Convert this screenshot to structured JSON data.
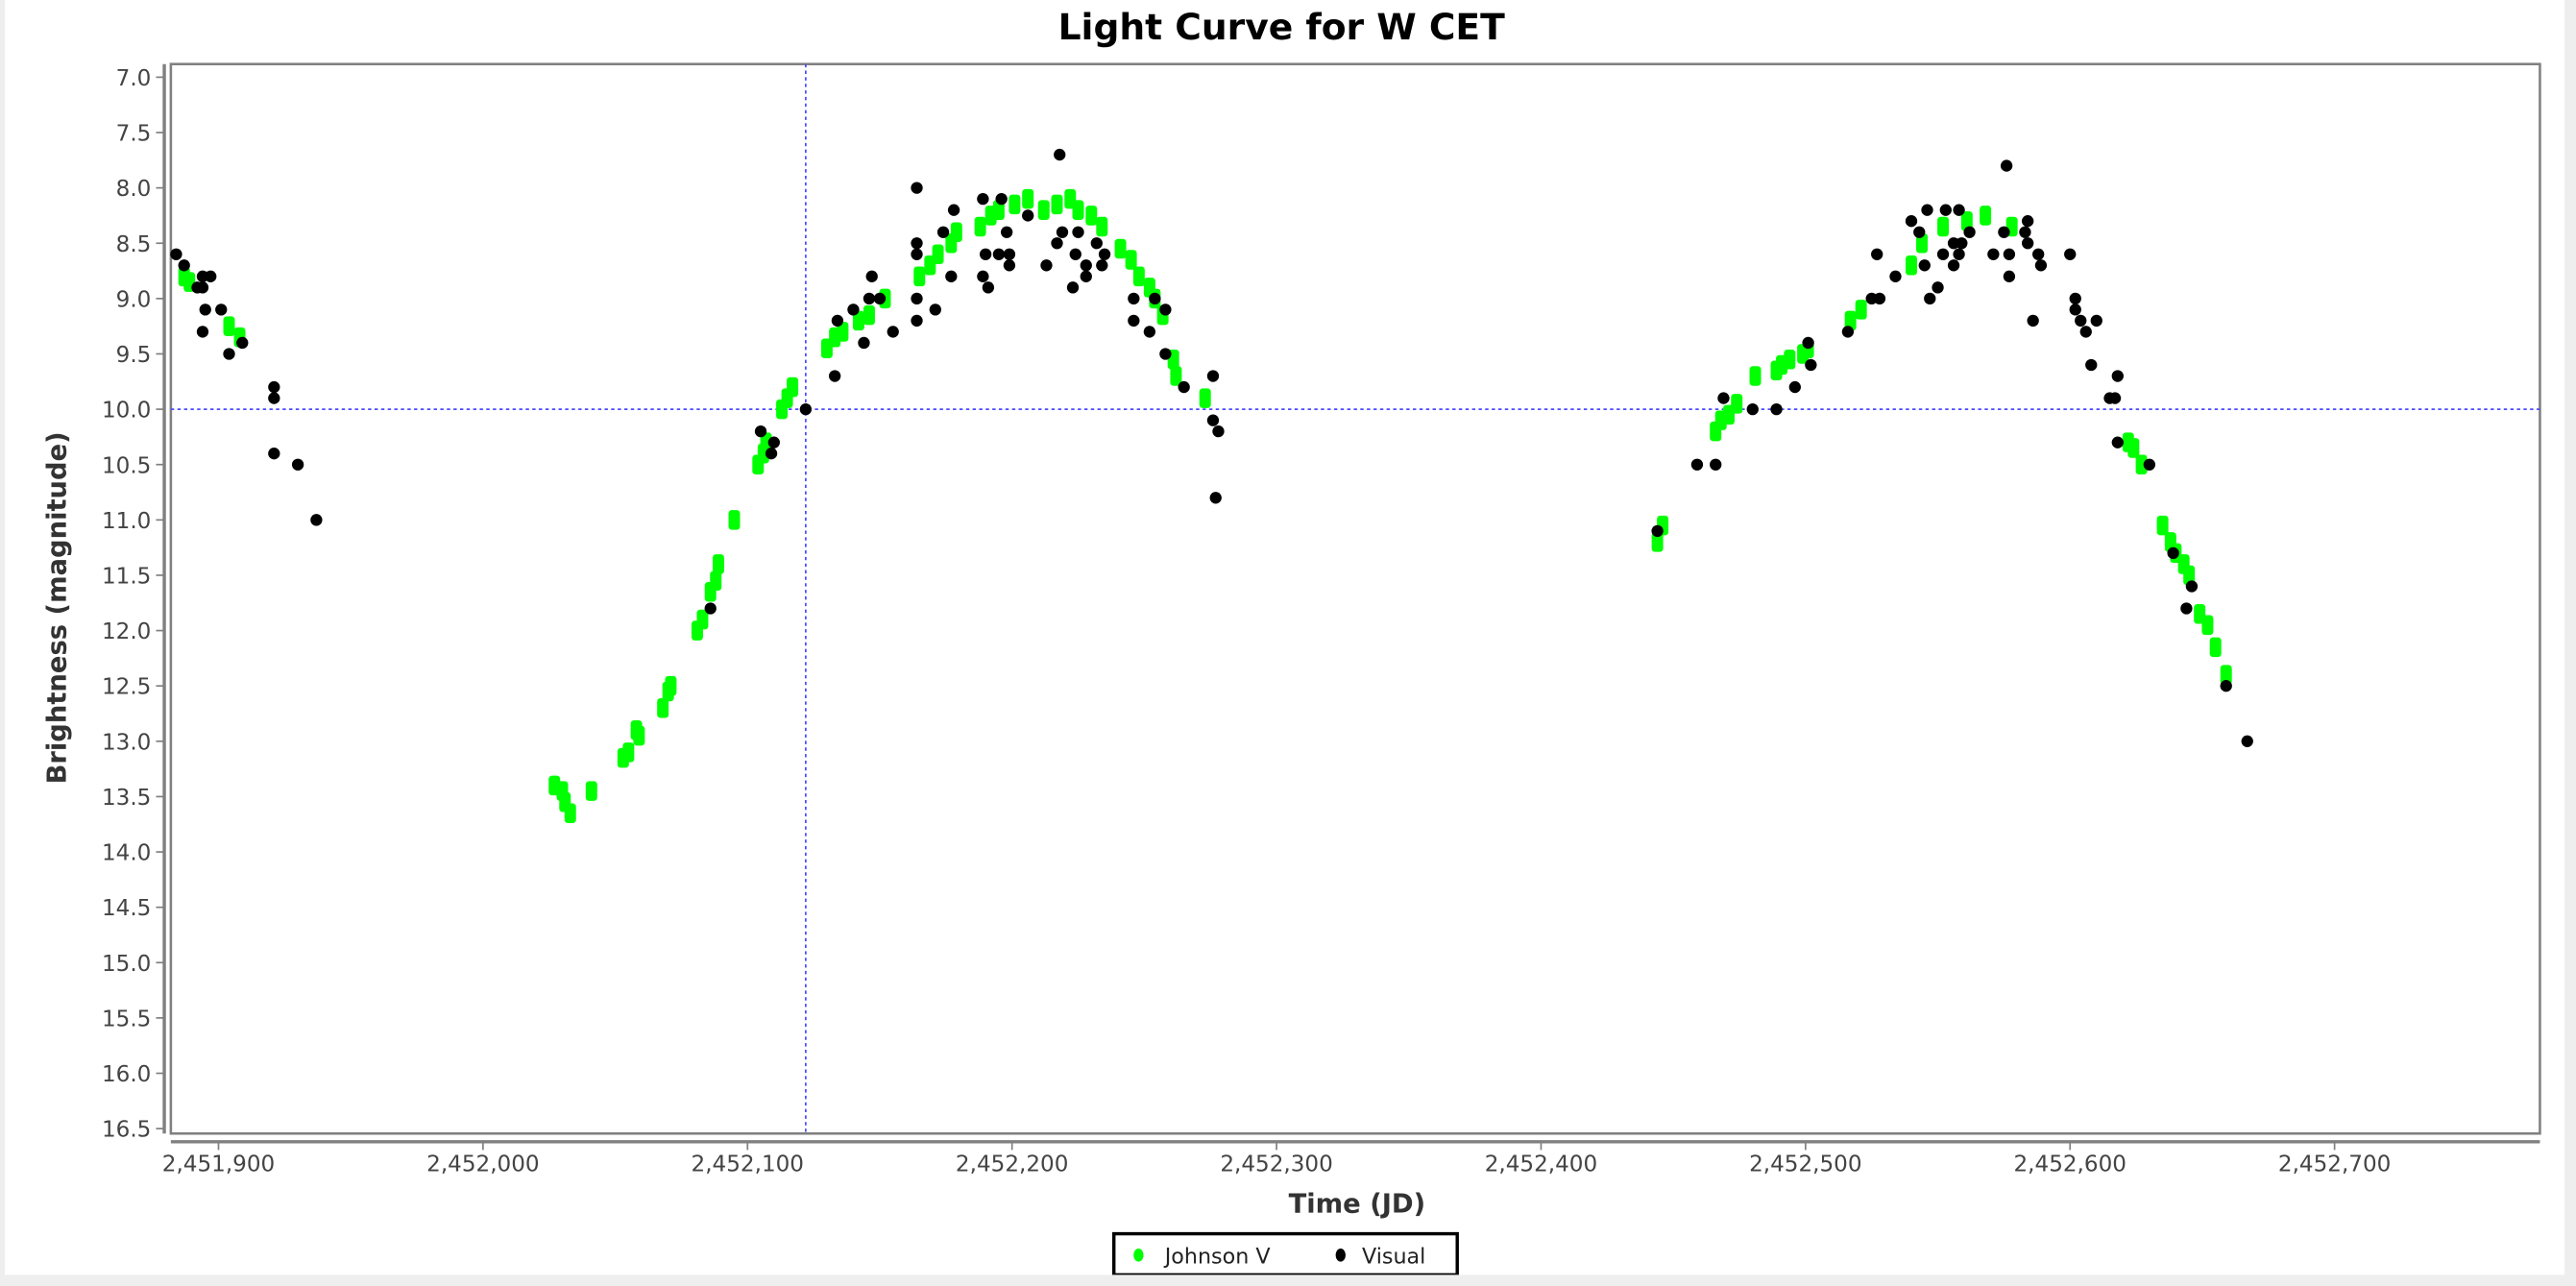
{
  "chart_data": {
    "type": "scatter",
    "title": "Light Curve for W CET",
    "xlabel": "Time (JD)",
    "ylabel": "Brightness (magnitude)",
    "xlim": [
      2451884,
      2452780
    ],
    "ylim": [
      16.55,
      6.9
    ],
    "y_inverted": true,
    "xticks": [
      2451900,
      2452000,
      2452100,
      2452200,
      2452300,
      2452400,
      2452500,
      2452600,
      2452700
    ],
    "xtick_labels": [
      "2,451,900",
      "2,452,000",
      "2,452,100",
      "2,452,200",
      "2,452,300",
      "2,452,400",
      "2,452,500",
      "2,452,600",
      "2,452,700"
    ],
    "yticks": [
      7.0,
      7.5,
      8.0,
      8.5,
      9.0,
      9.5,
      10.0,
      10.5,
      11.0,
      11.5,
      12.0,
      12.5,
      13.0,
      13.5,
      14.0,
      14.5,
      15.0,
      15.5,
      16.0,
      16.5
    ],
    "ytick_labels": [
      "7.0",
      "7.5",
      "8.0",
      "8.5",
      "9.0",
      "9.5",
      "10.0",
      "10.5",
      "11.0",
      "11.5",
      "12.0",
      "12.5",
      "13.0",
      "13.5",
      "14.0",
      "14.5",
      "15.0",
      "15.5",
      "16.0",
      "16.5"
    ],
    "crosshair": {
      "x": 2452122,
      "y": 10.0
    },
    "legend_position": "bottom-center",
    "series": [
      {
        "name": "Johnson V",
        "color": "#00ff00",
        "marker": "error-bar-box",
        "points": [
          [
            2451887,
            8.8
          ],
          [
            2451889,
            8.85
          ],
          [
            2451904,
            9.25
          ],
          [
            2451908,
            9.35
          ],
          [
            2452027,
            13.4
          ],
          [
            2452030,
            13.45
          ],
          [
            2452031,
            13.55
          ],
          [
            2452033,
            13.65
          ],
          [
            2452041,
            13.45
          ],
          [
            2452053,
            13.15
          ],
          [
            2452055,
            13.1
          ],
          [
            2452058,
            12.9
          ],
          [
            2452059,
            12.95
          ],
          [
            2452068,
            12.7
          ],
          [
            2452070,
            12.55
          ],
          [
            2452071,
            12.5
          ],
          [
            2452081,
            12.0
          ],
          [
            2452083,
            11.9
          ],
          [
            2452086,
            11.65
          ],
          [
            2452088,
            11.55
          ],
          [
            2452089,
            11.4
          ],
          [
            2452095,
            11.0
          ],
          [
            2452104,
            10.5
          ],
          [
            2452106,
            10.4
          ],
          [
            2452107,
            10.3
          ],
          [
            2452113,
            10.0
          ],
          [
            2452115,
            9.9
          ],
          [
            2452117,
            9.8
          ],
          [
            2452130,
            9.45
          ],
          [
            2452133,
            9.35
          ],
          [
            2452136,
            9.3
          ],
          [
            2452142,
            9.2
          ],
          [
            2452146,
            9.15
          ],
          [
            2452152,
            9.0
          ],
          [
            2452165,
            8.8
          ],
          [
            2452169,
            8.7
          ],
          [
            2452172,
            8.6
          ],
          [
            2452177,
            8.5
          ],
          [
            2452179,
            8.4
          ],
          [
            2452188,
            8.35
          ],
          [
            2452192,
            8.25
          ],
          [
            2452195,
            8.2
          ],
          [
            2452201,
            8.15
          ],
          [
            2452206,
            8.1
          ],
          [
            2452212,
            8.2
          ],
          [
            2452217,
            8.15
          ],
          [
            2452222,
            8.1
          ],
          [
            2452225,
            8.2
          ],
          [
            2452230,
            8.25
          ],
          [
            2452234,
            8.35
          ],
          [
            2452241,
            8.55
          ],
          [
            2452245,
            8.65
          ],
          [
            2452248,
            8.8
          ],
          [
            2452252,
            8.9
          ],
          [
            2452254,
            9.0
          ],
          [
            2452257,
            9.15
          ],
          [
            2452261,
            9.55
          ],
          [
            2452262,
            9.7
          ],
          [
            2452273,
            9.9
          ],
          [
            2452444,
            11.2
          ],
          [
            2452446,
            11.05
          ],
          [
            2452466,
            10.2
          ],
          [
            2452468,
            10.1
          ],
          [
            2452471,
            10.05
          ],
          [
            2452474,
            9.95
          ],
          [
            2452481,
            9.7
          ],
          [
            2452489,
            9.65
          ],
          [
            2452491,
            9.6
          ],
          [
            2452494,
            9.55
          ],
          [
            2452499,
            9.5
          ],
          [
            2452501,
            9.45
          ],
          [
            2452517,
            9.2
          ],
          [
            2452521,
            9.1
          ],
          [
            2452540,
            8.7
          ],
          [
            2452544,
            8.5
          ],
          [
            2452552,
            8.35
          ],
          [
            2452561,
            8.3
          ],
          [
            2452568,
            8.25
          ],
          [
            2452578,
            8.35
          ],
          [
            2452622,
            10.3
          ],
          [
            2452624,
            10.35
          ],
          [
            2452627,
            10.5
          ],
          [
            2452635,
            11.05
          ],
          [
            2452638,
            11.2
          ],
          [
            2452640,
            11.3
          ],
          [
            2452643,
            11.4
          ],
          [
            2452645,
            11.5
          ],
          [
            2452649,
            11.85
          ],
          [
            2452652,
            11.95
          ],
          [
            2452655,
            12.15
          ],
          [
            2452659,
            12.4
          ]
        ]
      },
      {
        "name": "Visual",
        "color": "#000000",
        "marker": "circle",
        "points": [
          [
            2451884,
            8.6
          ],
          [
            2451887,
            8.7
          ],
          [
            2451892,
            8.9
          ],
          [
            2451894,
            8.9
          ],
          [
            2451894,
            8.8
          ],
          [
            2451897,
            8.8
          ],
          [
            2451895,
            9.1
          ],
          [
            2451894,
            9.3
          ],
          [
            2451901,
            9.1
          ],
          [
            2451904,
            9.5
          ],
          [
            2451909,
            9.4
          ],
          [
            2451921,
            9.8
          ],
          [
            2451921,
            9.9
          ],
          [
            2451921,
            10.4
          ],
          [
            2451930,
            10.5
          ],
          [
            2451937,
            11.0
          ],
          [
            2452086,
            11.8
          ],
          [
            2452105,
            10.2
          ],
          [
            2452110,
            10.3
          ],
          [
            2452109,
            10.4
          ],
          [
            2452122,
            10.0
          ],
          [
            2452133,
            9.7
          ],
          [
            2452134,
            9.2
          ],
          [
            2452140,
            9.1
          ],
          [
            2452144,
            9.4
          ],
          [
            2452147,
            8.8
          ],
          [
            2452146,
            9.0
          ],
          [
            2452150,
            9.0
          ],
          [
            2452155,
            9.3
          ],
          [
            2452164,
            8.0
          ],
          [
            2452164,
            8.5
          ],
          [
            2452164,
            8.6
          ],
          [
            2452164,
            9.0
          ],
          [
            2452164,
            9.2
          ],
          [
            2452171,
            9.1
          ],
          [
            2452174,
            8.4
          ],
          [
            2452178,
            8.2
          ],
          [
            2452177,
            8.8
          ],
          [
            2452189,
            8.1
          ],
          [
            2452189,
            8.8
          ],
          [
            2452191,
            8.9
          ],
          [
            2452190,
            8.6
          ],
          [
            2452196,
            8.1
          ],
          [
            2452195,
            8.6
          ],
          [
            2452199,
            8.6
          ],
          [
            2452199,
            8.7
          ],
          [
            2452198,
            8.4
          ],
          [
            2452206,
            8.25
          ],
          [
            2452213,
            8.7
          ],
          [
            2452218,
            7.7
          ],
          [
            2452217,
            8.5
          ],
          [
            2452219,
            8.4
          ],
          [
            2452223,
            8.9
          ],
          [
            2452225,
            8.4
          ],
          [
            2452224,
            8.6
          ],
          [
            2452228,
            8.8
          ],
          [
            2452228,
            8.7
          ],
          [
            2452232,
            8.5
          ],
          [
            2452234,
            8.7
          ],
          [
            2452235,
            8.6
          ],
          [
            2452246,
            9.0
          ],
          [
            2452246,
            9.2
          ],
          [
            2452252,
            9.3
          ],
          [
            2452254,
            9.0
          ],
          [
            2452258,
            9.1
          ],
          [
            2452258,
            9.5
          ],
          [
            2452265,
            9.8
          ],
          [
            2452276,
            9.7
          ],
          [
            2452276,
            10.1
          ],
          [
            2452278,
            10.2
          ],
          [
            2452277,
            10.8
          ],
          [
            2452444,
            11.1
          ],
          [
            2452459,
            10.5
          ],
          [
            2452466,
            10.5
          ],
          [
            2452469,
            9.9
          ],
          [
            2452480,
            10.0
          ],
          [
            2452489,
            10.0
          ],
          [
            2452496,
            9.8
          ],
          [
            2452501,
            9.4
          ],
          [
            2452502,
            9.6
          ],
          [
            2452516,
            9.3
          ],
          [
            2452525,
            9.0
          ],
          [
            2452527,
            8.6
          ],
          [
            2452528,
            9.0
          ],
          [
            2452534,
            8.8
          ],
          [
            2452540,
            8.3
          ],
          [
            2452543,
            8.4
          ],
          [
            2452546,
            8.2
          ],
          [
            2452545,
            8.7
          ],
          [
            2452547,
            9.0
          ],
          [
            2452550,
            8.9
          ],
          [
            2452552,
            8.6
          ],
          [
            2452553,
            8.2
          ],
          [
            2452556,
            8.5
          ],
          [
            2452556,
            8.7
          ],
          [
            2452558,
            8.2
          ],
          [
            2452559,
            8.5
          ],
          [
            2452562,
            8.4
          ],
          [
            2452558,
            8.6
          ],
          [
            2452571,
            8.6
          ],
          [
            2452575,
            8.4
          ],
          [
            2452576,
            7.8
          ],
          [
            2452577,
            8.6
          ],
          [
            2452577,
            8.8
          ],
          [
            2452583,
            8.4
          ],
          [
            2452584,
            8.3
          ],
          [
            2452584,
            8.5
          ],
          [
            2452586,
            9.2
          ],
          [
            2452588,
            8.6
          ],
          [
            2452589,
            8.7
          ],
          [
            2452600,
            8.6
          ],
          [
            2452602,
            9.0
          ],
          [
            2452602,
            9.1
          ],
          [
            2452604,
            9.2
          ],
          [
            2452606,
            9.3
          ],
          [
            2452608,
            9.6
          ],
          [
            2452610,
            9.2
          ],
          [
            2452615,
            9.9
          ],
          [
            2452617,
            9.9
          ],
          [
            2452618,
            9.7
          ],
          [
            2452618,
            10.3
          ],
          [
            2452630,
            10.5
          ],
          [
            2452639,
            11.3
          ],
          [
            2452644,
            11.8
          ],
          [
            2452646,
            11.6
          ],
          [
            2452659,
            12.5
          ],
          [
            2452667,
            13.0
          ]
        ]
      }
    ]
  }
}
